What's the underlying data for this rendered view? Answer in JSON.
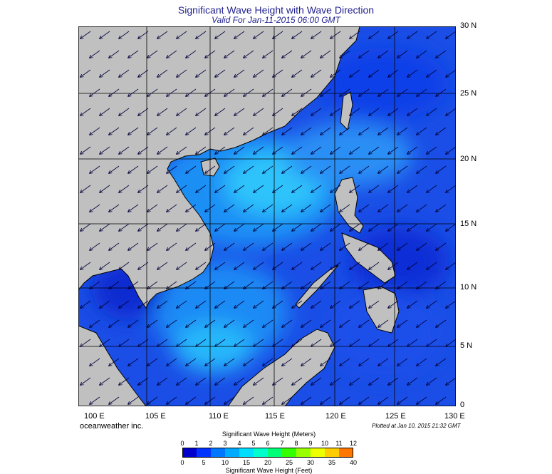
{
  "title": "Significant Wave Height with Wave Direction",
  "subtitle": "Valid For Jan-11-2015 06:00 GMT",
  "lat_labels": [
    "30 N",
    "25 N",
    "20 N",
    "15 N",
    "10 N",
    "5 N",
    "0"
  ],
  "lon_labels": [
    "100 E",
    "105 E",
    "110 E",
    "115 E",
    "120 E",
    "125 E",
    "130 E"
  ],
  "brand": "oceanweather inc.",
  "plotted": "Plotted at Jan 10, 2015 21:32 GMT",
  "colorbar": {
    "title_meters": "Significant Wave Height (Meters)",
    "title_feet": "Significant Wave Height (Feet)",
    "meters_ticks": [
      "0",
      "1",
      "2",
      "3",
      "4",
      "5",
      "6",
      "7",
      "8",
      "9",
      "10",
      "11",
      "12"
    ],
    "feet_ticks": [
      "0",
      "5",
      "10",
      "15",
      "20",
      "25",
      "30",
      "35",
      "40"
    ],
    "colors": [
      "#0000cc",
      "#0033ff",
      "#0077ff",
      "#00aaff",
      "#00ddff",
      "#00ffcc",
      "#00ff77",
      "#33ff00",
      "#99ff00",
      "#eeff00",
      "#ffcc00",
      "#ff7700",
      "#ff2200"
    ]
  },
  "map": {
    "lat_range": [
      0,
      30
    ],
    "lon_range": [
      100,
      130
    ],
    "land_color": "#c0c0c0",
    "wave_direction": "northeast to southwest"
  }
}
